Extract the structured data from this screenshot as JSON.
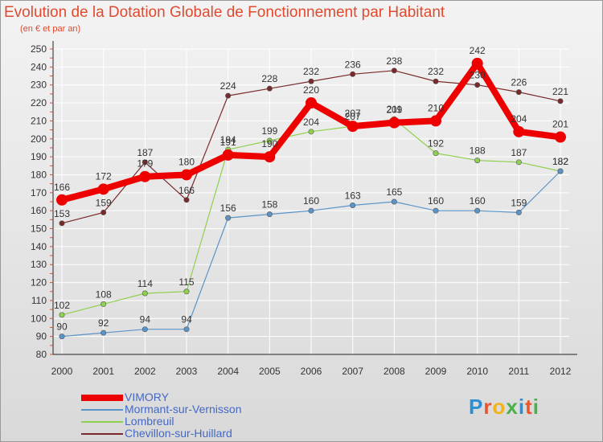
{
  "title": "Evolution de la Dotation Globale de Fonctionnement par Habitant",
  "subtitle": "(en € et par an)",
  "logo": "Proxiti",
  "logo_colors": [
    "#2a8fd6",
    "#e8552e",
    "#f2b21a",
    "#47b14a",
    "#2a8fd6",
    "#e8552e",
    "#47b14a"
  ],
  "chart_data": {
    "type": "line",
    "title": "Evolution de la Dotation Globale de Fonctionnement par Habitant",
    "ylabel": "(en € et par an)",
    "xlabel": "",
    "categories": [
      "2000",
      "2001",
      "2002",
      "2003",
      "2004",
      "2005",
      "2006",
      "2007",
      "2008",
      "2009",
      "2010",
      "2011",
      "2012"
    ],
    "ylim": [
      80,
      250
    ],
    "yticks": [
      80,
      90,
      100,
      110,
      120,
      130,
      140,
      150,
      160,
      170,
      180,
      190,
      200,
      210,
      220,
      230,
      240,
      250
    ],
    "grid": true,
    "series": [
      {
        "name": "VIMORY",
        "color": "#ee0000",
        "values": [
          166,
          172,
          179,
          180,
          191,
          190,
          220,
          207,
          209,
          210,
          242,
          204,
          201
        ]
      },
      {
        "name": "Mormant-sur-Vernisson",
        "color": "#5b94c8",
        "values": [
          90,
          92,
          94,
          94,
          156,
          158,
          160,
          163,
          165,
          160,
          160,
          159,
          182
        ]
      },
      {
        "name": "Lombreuil",
        "color": "#90d050",
        "values": [
          102,
          108,
          114,
          115,
          194,
          199,
          204,
          207,
          211,
          192,
          188,
          187,
          182
        ]
      },
      {
        "name": "Chevillon-sur-Huillard",
        "color": "#7a2a2a",
        "values": [
          153,
          159,
          187,
          166,
          224,
          228,
          232,
          236,
          238,
          232,
          230,
          226,
          221
        ]
      }
    ]
  }
}
